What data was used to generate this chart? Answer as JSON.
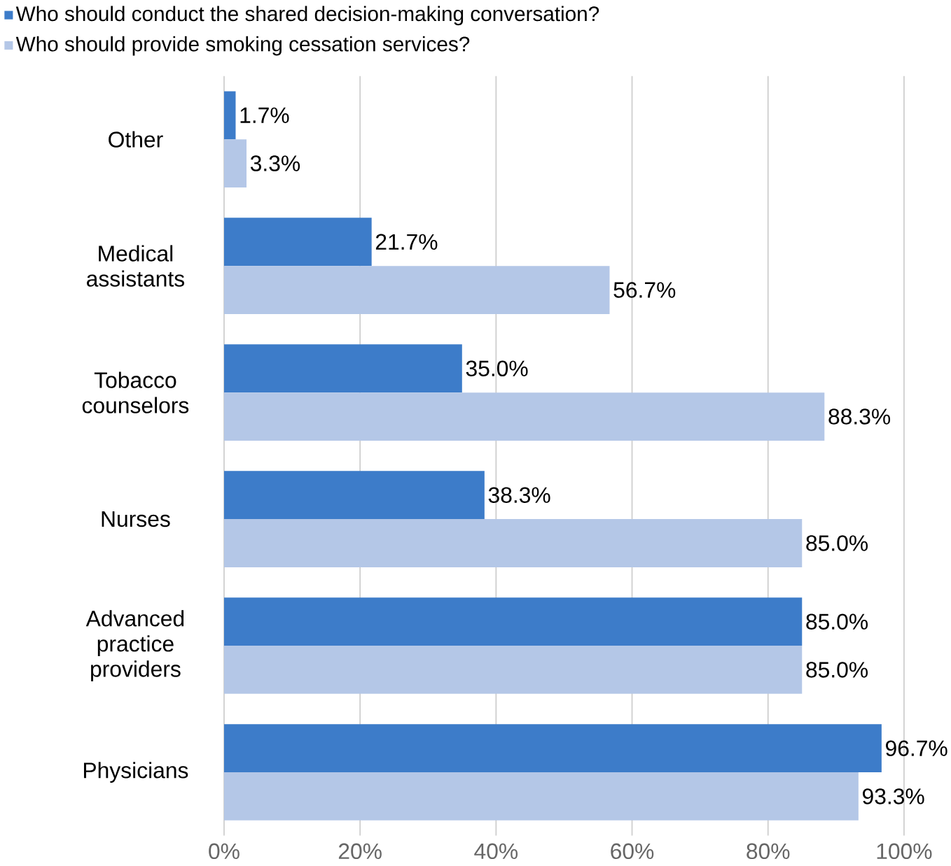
{
  "chart_data": {
    "type": "bar",
    "orientation": "horizontal",
    "categories": [
      "Other",
      "Medical assistants",
      "Tobacco counselors",
      "Nurses",
      "Advanced practice providers",
      "Physicians"
    ],
    "series": [
      {
        "name": "Who should conduct the shared decision-making conversation?",
        "color": "#3d7cc9",
        "values": [
          1.7,
          21.7,
          35.0,
          38.3,
          85.0,
          96.7
        ],
        "value_labels": [
          "1.7%",
          "21.7%",
          "35.0%",
          "38.3%",
          "85.0%",
          "96.7%"
        ]
      },
      {
        "name": "Who should provide smoking cessation services?",
        "color": "#b4c7e7",
        "values": [
          3.3,
          56.7,
          88.3,
          85.0,
          85.0,
          93.3
        ],
        "value_labels": [
          "3.3%",
          "56.7%",
          "88.3%",
          "85.0%",
          "85.0%",
          "93.3%"
        ]
      }
    ],
    "xlim": [
      0,
      100
    ],
    "xticks": [
      {
        "value": 0,
        "label": "0%"
      },
      {
        "value": 20,
        "label": "20%"
      },
      {
        "value": 40,
        "label": "40%"
      },
      {
        "value": 60,
        "label": "60%"
      },
      {
        "value": 80,
        "label": "80%"
      },
      {
        "value": 100,
        "label": "100%"
      }
    ],
    "grid": "x",
    "legend": "top"
  }
}
